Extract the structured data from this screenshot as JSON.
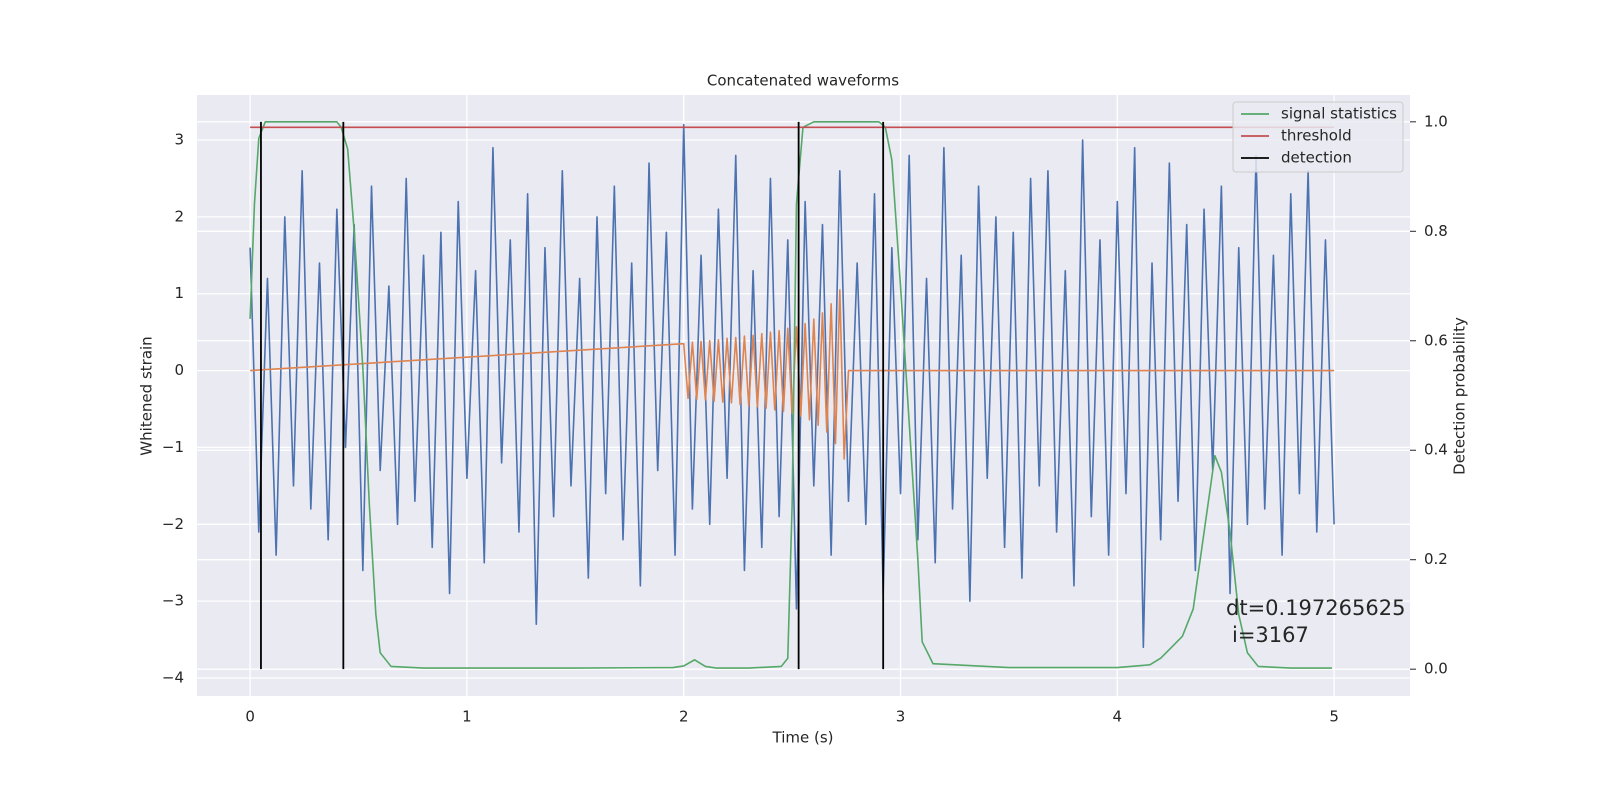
{
  "chart_data": {
    "type": "line",
    "title": "Concatenated waveforms",
    "xlabel": "Time (s)",
    "ylabel": "Whitened strain",
    "y2label": "Detection probability",
    "xlim": [
      -0.245,
      5.35
    ],
    "ylim": [
      -4.234,
      3.586
    ],
    "y2lim": [
      -0.049,
      1.049
    ],
    "xticks": [
      0,
      1,
      2,
      3,
      4,
      5
    ],
    "yticks": [
      {
        "value": -4,
        "label": "−4"
      },
      {
        "value": -3,
        "label": "−3"
      },
      {
        "value": -2,
        "label": "−2"
      },
      {
        "value": -1,
        "label": "−1"
      },
      0,
      1,
      2,
      3
    ],
    "y2ticks": [
      {
        "value": 0,
        "label": "0.0"
      },
      {
        "value": 0.2,
        "label": "0.2"
      },
      {
        "value": 0.4,
        "label": "0.4"
      },
      {
        "value": 0.6,
        "label": "0.6"
      },
      {
        "value": 0.8,
        "label": "0.8"
      },
      {
        "value": 1,
        "label": "1.0"
      }
    ],
    "grid": true,
    "legend": "upper right",
    "annotation": [
      "dt=0.197265625",
      "i=3167"
    ],
    "series": [
      {
        "color": "#4c72b0",
        "x": [
          0,
          0.04,
          0.08,
          0.12,
          0.16,
          0.2,
          0.24,
          0.28,
          0.32,
          0.36,
          0.4,
          0.44,
          0.48,
          0.52,
          0.56,
          0.6,
          0.64,
          0.68,
          0.72,
          0.76,
          0.8,
          0.84,
          0.88,
          0.92,
          0.96,
          1,
          1.04,
          1.08,
          1.12,
          1.16,
          1.2,
          1.24,
          1.28,
          1.32,
          1.36,
          1.4,
          1.44,
          1.48,
          1.52,
          1.56,
          1.6,
          1.64,
          1.68,
          1.72,
          1.76,
          1.8,
          1.84,
          1.88,
          1.92,
          1.96,
          2,
          2.04,
          2.08,
          2.12,
          2.16,
          2.2,
          2.24,
          2.28,
          2.32,
          2.36,
          2.4,
          2.44,
          2.48,
          2.52,
          2.56,
          2.6,
          2.64,
          2.68,
          2.72,
          2.76,
          2.8,
          2.84,
          2.88,
          2.92,
          2.96,
          3,
          3.04,
          3.08,
          3.12,
          3.16,
          3.2,
          3.24,
          3.28,
          3.32,
          3.36,
          3.4,
          3.44,
          3.48,
          3.52,
          3.56,
          3.6,
          3.64,
          3.68,
          3.72,
          3.76,
          3.8,
          3.84,
          3.88,
          3.92,
          3.96,
          4,
          4.04,
          4.08,
          4.12,
          4.16,
          4.2,
          4.24,
          4.28,
          4.32,
          4.36,
          4.4,
          4.44,
          4.48,
          4.52,
          4.56,
          4.6,
          4.64,
          4.68,
          4.72,
          4.76,
          4.8,
          4.84,
          4.88,
          4.92,
          4.96,
          5
        ],
        "values": [
          1.6,
          -2.1,
          1.2,
          -2.4,
          2.0,
          -1.5,
          2.6,
          -1.8,
          1.4,
          -2.2,
          2.1,
          -1.0,
          1.9,
          -2.6,
          2.4,
          -1.3,
          1.1,
          -2.0,
          2.5,
          -1.7,
          1.5,
          -2.3,
          1.8,
          -2.9,
          2.2,
          -1.4,
          1.3,
          -2.5,
          2.9,
          -1.2,
          1.7,
          -2.1,
          2.3,
          -3.3,
          1.6,
          -1.9,
          2.6,
          -1.5,
          1.2,
          -2.7,
          2.0,
          -1.6,
          2.4,
          -2.2,
          1.4,
          -2.8,
          2.7,
          -1.3,
          1.8,
          -2.4,
          3.2,
          -1.8,
          1.5,
          -2.0,
          2.1,
          -1.4,
          2.8,
          -2.6,
          1.3,
          -2.3,
          2.5,
          -1.9,
          1.7,
          -3.1,
          2.2,
          -1.5,
          1.9,
          -2.4,
          2.6,
          -1.7,
          1.4,
          -2.0,
          2.3,
          -2.9,
          1.6,
          -1.6,
          2.8,
          -2.2,
          1.2,
          -2.5,
          2.9,
          -1.8,
          1.5,
          -3.0,
          2.4,
          -1.4,
          2.0,
          -2.3,
          1.8,
          -2.7,
          2.5,
          -1.5,
          2.6,
          -2.1,
          1.3,
          -2.8,
          3.0,
          -1.9,
          1.7,
          -2.4,
          2.2,
          -1.6,
          2.9,
          -3.6,
          1.4,
          -2.2,
          2.7,
          -1.7,
          1.9,
          -2.6,
          2.1,
          -1.3,
          2.4,
          -2.9,
          1.6,
          -2.0,
          2.8,
          -1.8,
          1.5,
          -2.4,
          2.3,
          -1.6,
          2.6,
          -2.1,
          1.7,
          -2.0
        ]
      },
      {
        "color": "#dd8452",
        "x": [
          0,
          2,
          2.02,
          2.04,
          2.06,
          2.08,
          2.1,
          2.12,
          2.14,
          2.16,
          2.18,
          2.2,
          2.22,
          2.24,
          2.26,
          2.28,
          2.3,
          2.32,
          2.34,
          2.36,
          2.38,
          2.4,
          2.42,
          2.44,
          2.46,
          2.48,
          2.5,
          2.52,
          2.54,
          2.56,
          2.58,
          2.6,
          2.62,
          2.64,
          2.66,
          2.68,
          2.7,
          2.72,
          2.74,
          2.76,
          5
        ],
        "values": [
          0,
          0.35,
          -0.36,
          0.37,
          -0.37,
          0.38,
          -0.38,
          0.39,
          -0.4,
          0.4,
          -0.41,
          0.42,
          -0.42,
          0.43,
          -0.44,
          0.45,
          -0.46,
          0.46,
          -0.47,
          0.48,
          -0.49,
          0.5,
          -0.51,
          0.52,
          -0.53,
          0.55,
          -0.56,
          0.57,
          -0.59,
          0.61,
          -0.64,
          0.67,
          -0.71,
          0.75,
          -0.8,
          0.87,
          -0.95,
          1.05,
          -1.15,
          0.0,
          0
        ]
      },
      {
        "name": "signal statistics",
        "color": "#55a868",
        "axis": "y2",
        "x": [
          0,
          0.02,
          0.04,
          0.07,
          0.1,
          0.2,
          0.3,
          0.4,
          0.42,
          0.45,
          0.48,
          0.52,
          0.55,
          0.58,
          0.6,
          0.65,
          0.8,
          1.5,
          1.95,
          2.0,
          2.05,
          2.1,
          2.15,
          2.3,
          2.45,
          2.48,
          2.5,
          2.52,
          2.55,
          2.6,
          2.8,
          2.9,
          2.93,
          2.96,
          3.0,
          3.04,
          3.08,
          3.1,
          3.15,
          3.5,
          4.0,
          4.15,
          4.2,
          4.25,
          4.3,
          4.35,
          4.4,
          4.45,
          4.48,
          4.52,
          4.56,
          4.6,
          4.65,
          4.8,
          4.99
        ],
        "values": [
          0.64,
          0.85,
          0.97,
          1.0,
          1.0,
          1.0,
          1.0,
          1.0,
          0.99,
          0.95,
          0.8,
          0.55,
          0.3,
          0.1,
          0.03,
          0.005,
          0.002,
          0.002,
          0.003,
          0.006,
          0.017,
          0.005,
          0.002,
          0.002,
          0.005,
          0.02,
          0.3,
          0.85,
          0.99,
          1.0,
          1.0,
          1.0,
          0.99,
          0.93,
          0.7,
          0.45,
          0.2,
          0.05,
          0.01,
          0.003,
          0.003,
          0.008,
          0.02,
          0.04,
          0.06,
          0.11,
          0.25,
          0.39,
          0.36,
          0.25,
          0.1,
          0.03,
          0.005,
          0.002,
          0.002
        ]
      },
      {
        "name": "threshold",
        "color": "#c44e52",
        "axis": "y2",
        "x": [
          0,
          5
        ],
        "values": [
          0.99,
          0.99
        ]
      }
    ],
    "detection": {
      "name": "detection",
      "color": "#000000",
      "x": [
        0.05,
        0.43,
        2.53,
        2.92
      ]
    }
  }
}
